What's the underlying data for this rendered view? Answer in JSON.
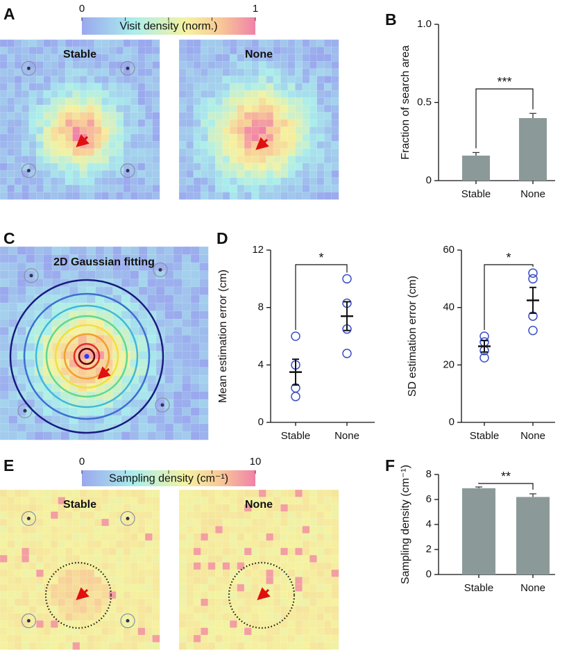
{
  "chart_data": [
    {
      "type": "heatmap",
      "panel_label": "A",
      "colorbar_label": "Visit density (norm.)",
      "colorbar_ticks": [
        0,
        1
      ],
      "maps": [
        "Stable",
        "None"
      ]
    },
    {
      "type": "bar",
      "panel_label": "B",
      "categories": [
        "Stable",
        "None"
      ],
      "values": [
        0.16,
        0.4
      ],
      "errors": [
        0.02,
        0.03
      ],
      "color": "#8c9999",
      "ylim": [
        0,
        1
      ],
      "yticks": [
        0,
        0.5,
        {
          "value": 1,
          "label": "1.0"
        }
      ],
      "ylabel": "Fraction of search area",
      "significance": "***"
    },
    {
      "type": "gaussian",
      "panel_label": "C",
      "title": "2D Gaussian fitting",
      "contour_colors": [
        "#1a1a80",
        "#3a6fd0",
        "#40b8d8",
        "#60d890",
        "#f0e040",
        "#f0a030",
        "#e03020",
        "#600000"
      ]
    },
    {
      "type": "dot",
      "panel_label": "D",
      "categories": [
        "Stable",
        "None"
      ],
      "points": [
        [
          6.0,
          4.0,
          2.4,
          1.8
        ],
        [
          10.0,
          8.3,
          6.5,
          4.8
        ]
      ],
      "means": [
        3.5,
        7.4
      ],
      "sems": [
        0.9,
        1.0
      ],
      "color": "#3b4fc4",
      "ylim": [
        0,
        12
      ],
      "yticks": [
        0,
        4,
        8,
        12
      ],
      "ylabel": "Mean estimation error (cm)",
      "significance": "*"
    },
    {
      "type": "dot",
      "categories": [
        "Stable",
        "None"
      ],
      "points": [
        [
          30,
          28,
          25,
          22.5
        ],
        [
          52,
          50,
          37,
          32
        ]
      ],
      "means": [
        26.5,
        42.5
      ],
      "sems": [
        2,
        4.5
      ],
      "color": "#3b4fc4",
      "ylim": [
        0,
        60
      ],
      "yticks": [
        0,
        20,
        40,
        60
      ],
      "ylabel": "SD estimation error (cm)",
      "significance": "*"
    },
    {
      "type": "heatmap",
      "panel_label": "E",
      "colorbar_label": "Sampling density (cm⁻¹)",
      "colorbar_ticks": [
        0,
        10
      ],
      "maps": [
        "Stable",
        "None"
      ]
    },
    {
      "type": "bar",
      "panel_label": "F",
      "categories": [
        "Stable",
        "None"
      ],
      "values": [
        6.9,
        6.2
      ],
      "errors": [
        0.1,
        0.25
      ],
      "color": "#8c9999",
      "ylim": [
        0,
        8
      ],
      "yticks": [
        0,
        2,
        4,
        6,
        8
      ],
      "ylabel": "Sampling density (cm⁻¹)",
      "significance": "**"
    }
  ]
}
